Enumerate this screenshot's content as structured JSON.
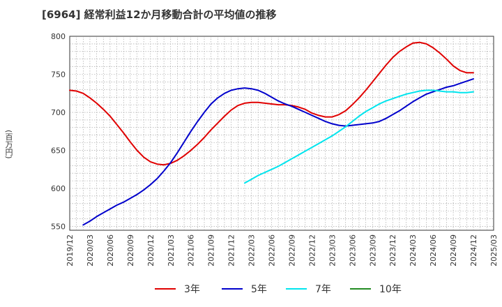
{
  "chart_data": {
    "type": "line",
    "title": "[6964]  経常利益12か月移動合計の平均値の推移",
    "ylabel": "(百万円)",
    "xlabel": "",
    "ylim": [
      545,
      800
    ],
    "yticks": [
      550,
      600,
      650,
      700,
      750,
      800
    ],
    "xticks": [
      "2019/12",
      "2020/03",
      "2020/06",
      "2020/09",
      "2020/12",
      "2021/03",
      "2021/06",
      "2021/09",
      "2021/12",
      "2022/03",
      "2022/06",
      "2022/09",
      "2022/12",
      "2023/03",
      "2023/06",
      "2023/09",
      "2023/12",
      "2024/03",
      "2024/06",
      "2024/09",
      "2024/12",
      "2025/03"
    ],
    "grid": true,
    "legend_position": "bottom",
    "series": [
      {
        "name": "3年",
        "color": "#e00000",
        "points": [
          [
            "2019/12",
            729
          ],
          [
            "2020/01",
            728
          ],
          [
            "2020/02",
            725
          ],
          [
            "2020/03",
            719
          ],
          [
            "2020/04",
            712
          ],
          [
            "2020/05",
            704
          ],
          [
            "2020/06",
            695
          ],
          [
            "2020/07",
            684
          ],
          [
            "2020/08",
            673
          ],
          [
            "2020/09",
            661
          ],
          [
            "2020/10",
            650
          ],
          [
            "2020/11",
            641
          ],
          [
            "2020/12",
            635
          ],
          [
            "2021/01",
            632
          ],
          [
            "2021/02",
            631
          ],
          [
            "2021/03",
            633
          ],
          [
            "2021/04",
            637
          ],
          [
            "2021/05",
            643
          ],
          [
            "2021/06",
            650
          ],
          [
            "2021/07",
            658
          ],
          [
            "2021/08",
            667
          ],
          [
            "2021/09",
            677
          ],
          [
            "2021/10",
            686
          ],
          [
            "2021/11",
            695
          ],
          [
            "2021/12",
            703
          ],
          [
            "2022/01",
            709
          ],
          [
            "2022/02",
            712
          ],
          [
            "2022/03",
            713
          ],
          [
            "2022/04",
            713
          ],
          [
            "2022/05",
            712
          ],
          [
            "2022/06",
            711
          ],
          [
            "2022/07",
            710
          ],
          [
            "2022/08",
            710
          ],
          [
            "2022/09",
            709
          ],
          [
            "2022/10",
            707
          ],
          [
            "2022/11",
            704
          ],
          [
            "2022/12",
            699
          ],
          [
            "2023/01",
            696
          ],
          [
            "2023/02",
            694
          ],
          [
            "2023/03",
            694
          ],
          [
            "2023/04",
            697
          ],
          [
            "2023/05",
            702
          ],
          [
            "2023/06",
            710
          ],
          [
            "2023/07",
            719
          ],
          [
            "2023/08",
            729
          ],
          [
            "2023/09",
            740
          ],
          [
            "2023/10",
            751
          ],
          [
            "2023/11",
            762
          ],
          [
            "2023/12",
            772
          ],
          [
            "2024/01",
            780
          ],
          [
            "2024/02",
            786
          ],
          [
            "2024/03",
            791
          ],
          [
            "2024/04",
            792
          ],
          [
            "2024/05",
            790
          ],
          [
            "2024/06",
            785
          ],
          [
            "2024/07",
            778
          ],
          [
            "2024/08",
            770
          ],
          [
            "2024/09",
            761
          ],
          [
            "2024/10",
            755
          ],
          [
            "2024/11",
            752
          ],
          [
            "2024/12",
            752
          ]
        ]
      },
      {
        "name": "5年",
        "color": "#0000cc",
        "points": [
          [
            "2020/02",
            552
          ],
          [
            "2020/03",
            557
          ],
          [
            "2020/04",
            563
          ],
          [
            "2020/05",
            568
          ],
          [
            "2020/06",
            573
          ],
          [
            "2020/07",
            578
          ],
          [
            "2020/08",
            582
          ],
          [
            "2020/09",
            587
          ],
          [
            "2020/10",
            592
          ],
          [
            "2020/11",
            598
          ],
          [
            "2020/12",
            605
          ],
          [
            "2021/01",
            613
          ],
          [
            "2021/02",
            623
          ],
          [
            "2021/03",
            634
          ],
          [
            "2021/04",
            647
          ],
          [
            "2021/05",
            661
          ],
          [
            "2021/06",
            675
          ],
          [
            "2021/07",
            688
          ],
          [
            "2021/08",
            700
          ],
          [
            "2021/09",
            711
          ],
          [
            "2021/10",
            719
          ],
          [
            "2021/11",
            725
          ],
          [
            "2021/12",
            729
          ],
          [
            "2022/01",
            731
          ],
          [
            "2022/02",
            732
          ],
          [
            "2022/03",
            731
          ],
          [
            "2022/04",
            729
          ],
          [
            "2022/05",
            725
          ],
          [
            "2022/06",
            720
          ],
          [
            "2022/07",
            715
          ],
          [
            "2022/08",
            711
          ],
          [
            "2022/09",
            708
          ],
          [
            "2022/10",
            704
          ],
          [
            "2022/11",
            700
          ],
          [
            "2022/12",
            696
          ],
          [
            "2023/01",
            692
          ],
          [
            "2023/02",
            688
          ],
          [
            "2023/03",
            685
          ],
          [
            "2023/04",
            683
          ],
          [
            "2023/05",
            682
          ],
          [
            "2023/06",
            683
          ],
          [
            "2023/07",
            684
          ],
          [
            "2023/08",
            685
          ],
          [
            "2023/09",
            686
          ],
          [
            "2023/10",
            688
          ],
          [
            "2023/11",
            692
          ],
          [
            "2023/12",
            697
          ],
          [
            "2024/01",
            702
          ],
          [
            "2024/02",
            708
          ],
          [
            "2024/03",
            714
          ],
          [
            "2024/04",
            719
          ],
          [
            "2024/05",
            724
          ],
          [
            "2024/06",
            727
          ],
          [
            "2024/07",
            730
          ],
          [
            "2024/08",
            733
          ],
          [
            "2024/09",
            735
          ],
          [
            "2024/10",
            738
          ],
          [
            "2024/11",
            741
          ],
          [
            "2024/12",
            744
          ]
        ]
      },
      {
        "name": "7年",
        "color": "#00e5ee",
        "points": [
          [
            "2022/02",
            607
          ],
          [
            "2022/03",
            612
          ],
          [
            "2022/04",
            617
          ],
          [
            "2022/05",
            621
          ],
          [
            "2022/06",
            625
          ],
          [
            "2022/07",
            629
          ],
          [
            "2022/08",
            634
          ],
          [
            "2022/09",
            639
          ],
          [
            "2022/10",
            644
          ],
          [
            "2022/11",
            649
          ],
          [
            "2022/12",
            654
          ],
          [
            "2023/01",
            659
          ],
          [
            "2023/02",
            664
          ],
          [
            "2023/03",
            669
          ],
          [
            "2023/04",
            675
          ],
          [
            "2023/05",
            681
          ],
          [
            "2023/06",
            688
          ],
          [
            "2023/07",
            695
          ],
          [
            "2023/08",
            701
          ],
          [
            "2023/09",
            706
          ],
          [
            "2023/10",
            711
          ],
          [
            "2023/11",
            715
          ],
          [
            "2023/12",
            718
          ],
          [
            "2024/01",
            721
          ],
          [
            "2024/02",
            724
          ],
          [
            "2024/03",
            726
          ],
          [
            "2024/04",
            728
          ],
          [
            "2024/05",
            729
          ],
          [
            "2024/06",
            729
          ],
          [
            "2024/07",
            728
          ],
          [
            "2024/08",
            727
          ],
          [
            "2024/09",
            727
          ],
          [
            "2024/10",
            726
          ],
          [
            "2024/11",
            726
          ],
          [
            "2024/12",
            727
          ]
        ]
      },
      {
        "name": "10年",
        "color": "#228b22",
        "points": []
      }
    ]
  }
}
